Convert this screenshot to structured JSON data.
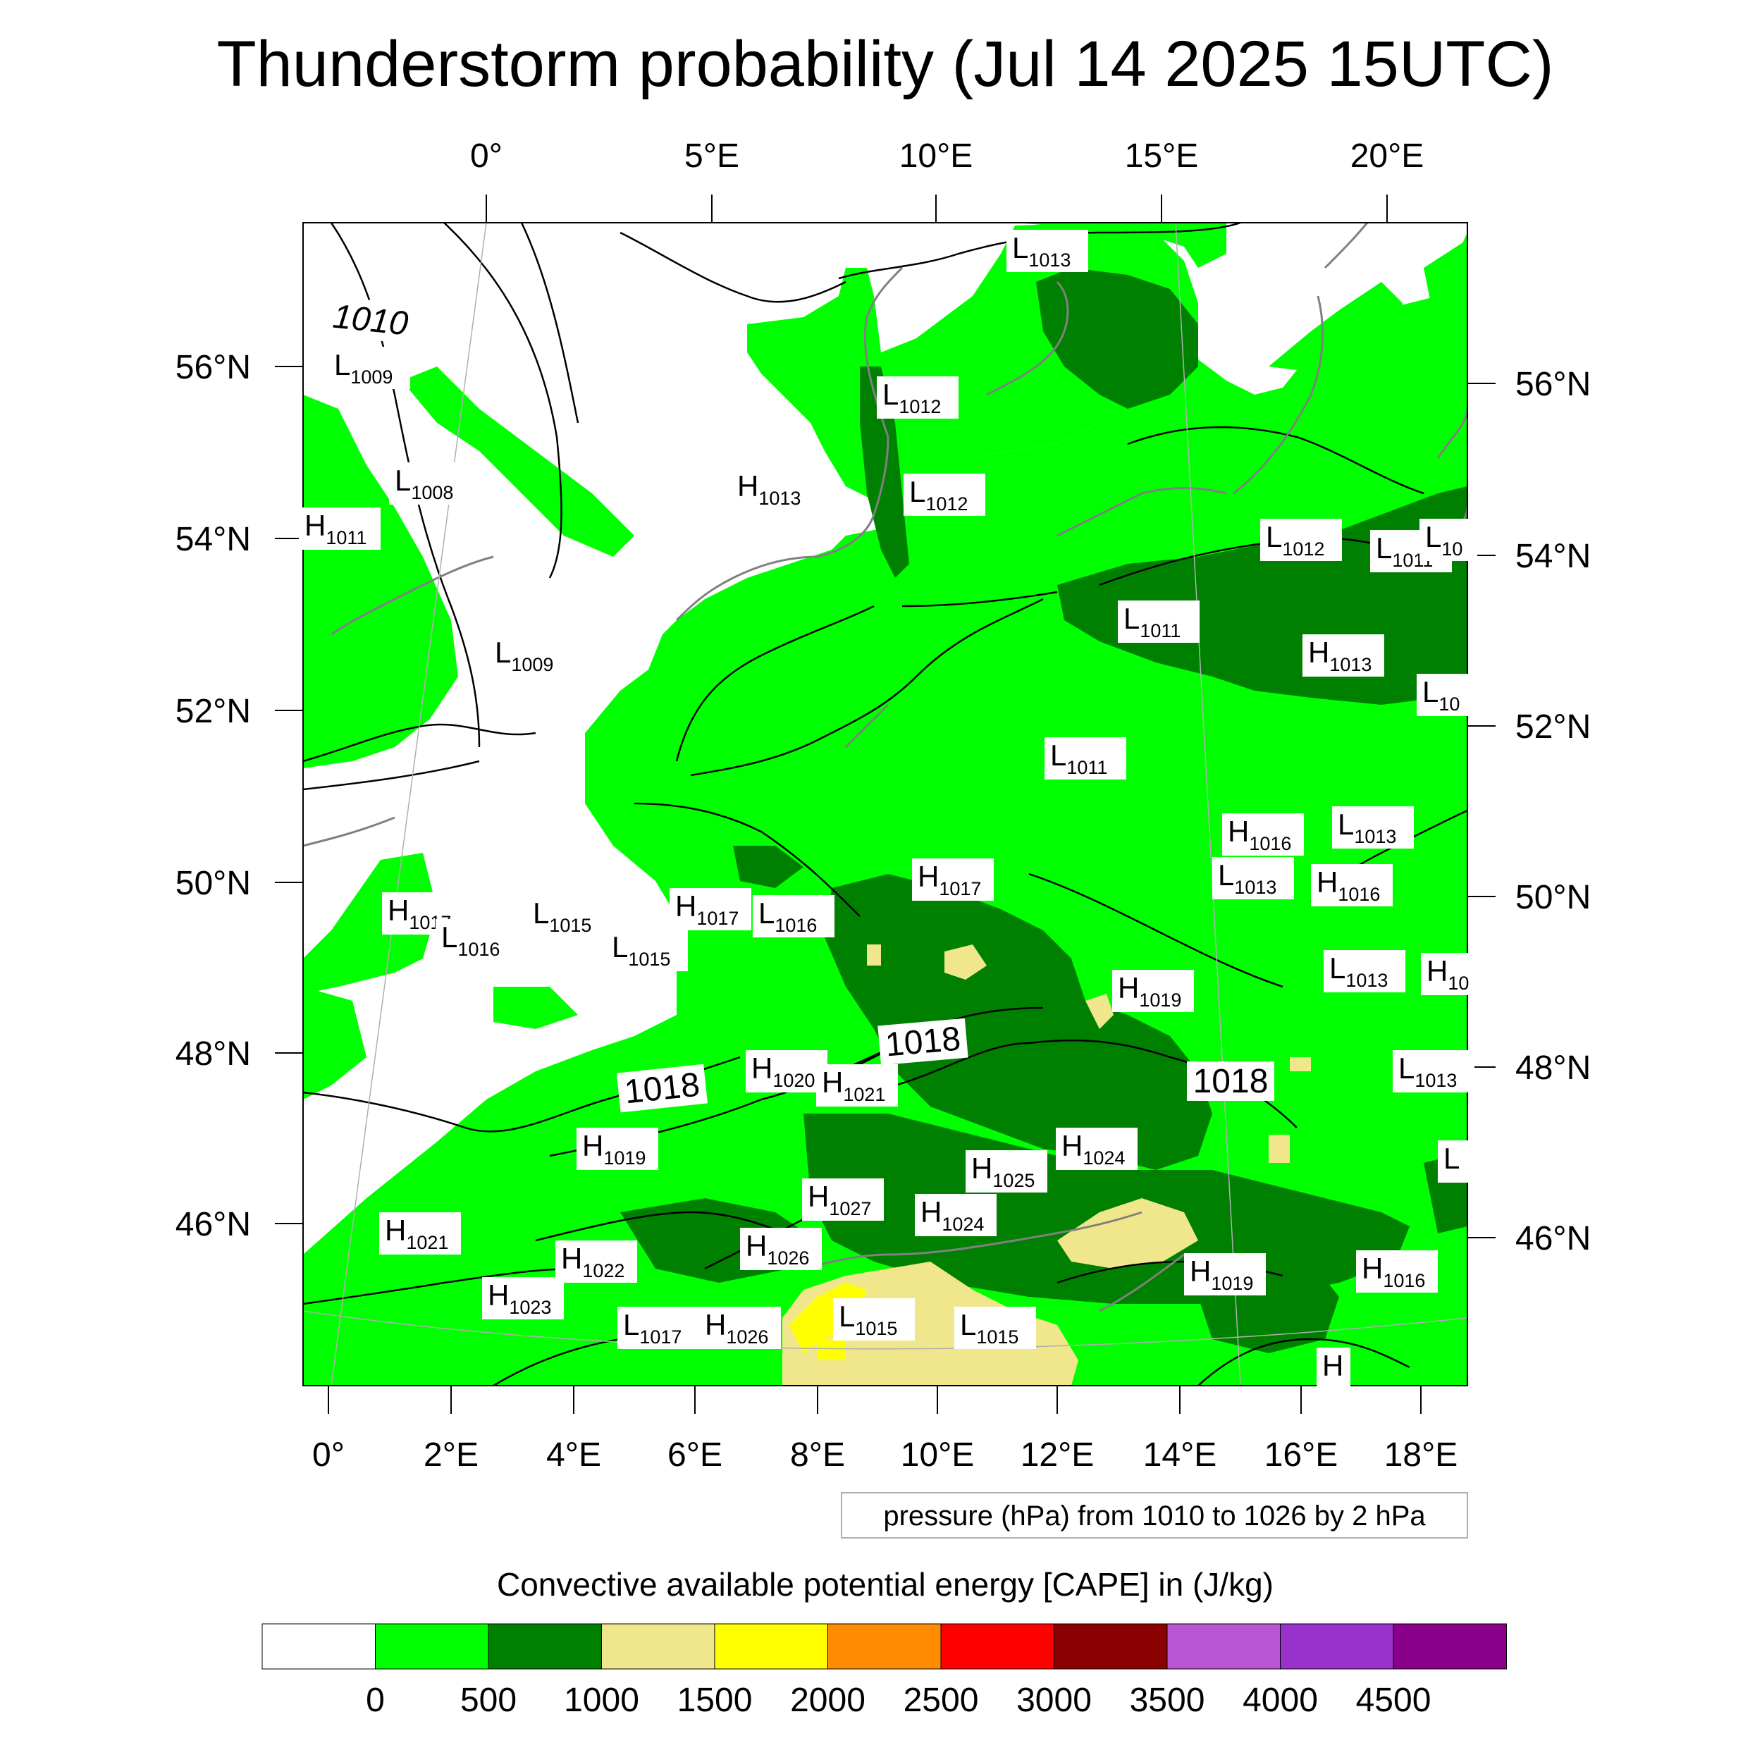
{
  "title": "Thunderstorm probability (Jul 14 2025 15UTC)",
  "top_lon_labels": [
    "0°",
    "5°E",
    "10°E",
    "15°E",
    "20°E"
  ],
  "bottom_lon_labels": [
    "0°",
    "2°E",
    "4°E",
    "6°E",
    "8°E",
    "10°E",
    "12°E",
    "14°E",
    "16°E",
    "18°E"
  ],
  "left_lat_labels": [
    "56°N",
    "54°N",
    "52°N",
    "50°N",
    "48°N",
    "46°N"
  ],
  "right_lat_labels": [
    "56°N",
    "54°N",
    "52°N",
    "50°N",
    "48°N",
    "46°N"
  ],
  "isobar_labels": [
    "1010",
    "1018",
    "1018",
    "1018"
  ],
  "pressure_centers": [
    {
      "t": "L",
      "v": "1009"
    },
    {
      "t": "L",
      "v": "1008"
    },
    {
      "t": "H",
      "v": "1011"
    },
    {
      "t": "L",
      "v": "1009"
    },
    {
      "t": "H",
      "v": "1013"
    },
    {
      "t": "L",
      "v": "1012"
    },
    {
      "t": "L",
      "v": "1012"
    },
    {
      "t": "L",
      "v": "1013"
    },
    {
      "t": "L",
      "v": "1012"
    },
    {
      "t": "L",
      "v": "1011"
    },
    {
      "t": "L",
      "v": "10"
    },
    {
      "t": "L",
      "v": "1011"
    },
    {
      "t": "H",
      "v": "1013"
    },
    {
      "t": "L",
      "v": "10"
    },
    {
      "t": "L",
      "v": "1011"
    },
    {
      "t": "H",
      "v": "1016"
    },
    {
      "t": "L",
      "v": "1013"
    },
    {
      "t": "L",
      "v": "1013"
    },
    {
      "t": "H",
      "v": "1016"
    },
    {
      "t": "H",
      "v": "1017"
    },
    {
      "t": "H",
      "v": "1017"
    },
    {
      "t": "L",
      "v": "1016"
    },
    {
      "t": "H",
      "v": "1017"
    },
    {
      "t": "L",
      "v": "1016"
    },
    {
      "t": "L",
      "v": "1015"
    },
    {
      "t": "L",
      "v": "1015"
    },
    {
      "t": "L",
      "v": "1013"
    },
    {
      "t": "H",
      "v": "10"
    },
    {
      "t": "H",
      "v": "1019"
    },
    {
      "t": "H",
      "v": "1020"
    },
    {
      "t": "H",
      "v": "1021"
    },
    {
      "t": "L",
      "v": "1013"
    },
    {
      "t": "H",
      "v": "1019"
    },
    {
      "t": "H",
      "v": "1024"
    },
    {
      "t": "H",
      "v": "1025"
    },
    {
      "t": "L",
      "v": ""
    },
    {
      "t": "H",
      "v": "1027"
    },
    {
      "t": "H",
      "v": "1024"
    },
    {
      "t": "H",
      "v": "1026"
    },
    {
      "t": "H",
      "v": "1021"
    },
    {
      "t": "H",
      "v": "1022"
    },
    {
      "t": "H",
      "v": "1023"
    },
    {
      "t": "H",
      "v": "1019"
    },
    {
      "t": "H",
      "v": "1016"
    },
    {
      "t": "L",
      "v": "1017"
    },
    {
      "t": "H",
      "v": "1026"
    },
    {
      "t": "L",
      "v": "1015"
    },
    {
      "t": "L",
      "v": "1015"
    },
    {
      "t": "H",
      "v": ""
    }
  ],
  "contour_note": "pressure (hPa) from 1010 to 1026 by 2 hPa",
  "colorbar": {
    "caption": "Convective available potential energy [CAPE] in (J/kg)",
    "colors": [
      "#ffffff",
      "#00ff00",
      "#008000",
      "#f0e68c",
      "#ffff00",
      "#ff8c00",
      "#ff0000",
      "#8b0000",
      "#ba55d3",
      "#9932cc",
      "#8b008b"
    ],
    "labels": [
      "0",
      "500",
      "1000",
      "1500",
      "2000",
      "2500",
      "3000",
      "3500",
      "4000",
      "4500"
    ]
  }
}
